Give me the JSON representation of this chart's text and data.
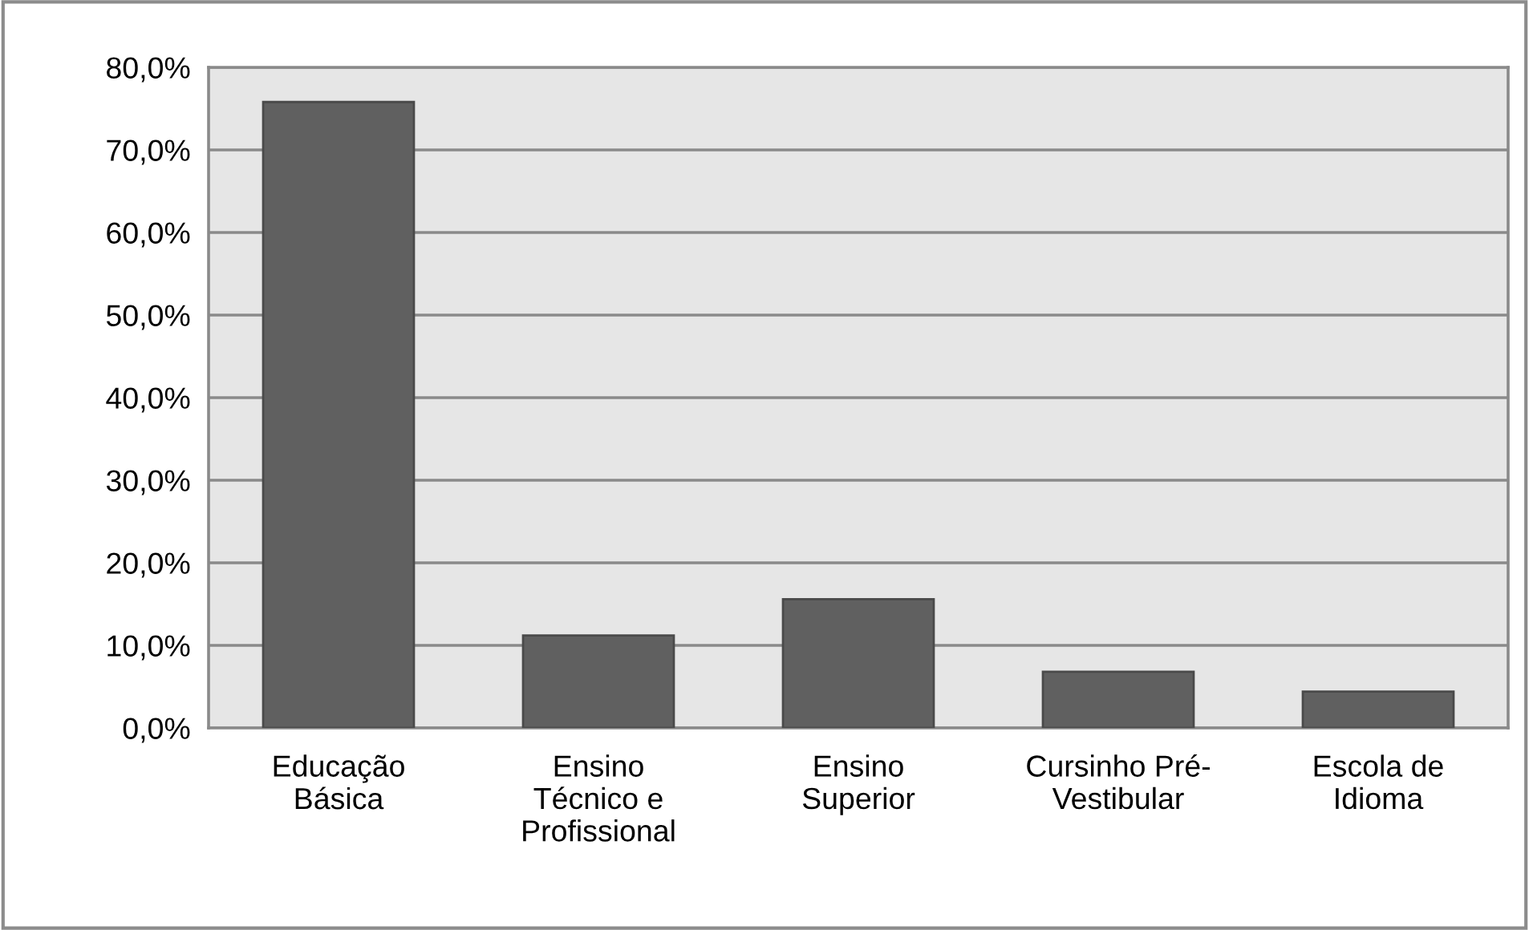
{
  "chart_data": {
    "type": "bar",
    "categories": [
      "Educação\nBásica",
      "Ensino\nTécnico e\nProfissional",
      "Ensino\nSuperior",
      "Cursinho Pré-\nVestibular",
      "Escola de\nIdioma"
    ],
    "values": [
      75.8,
      11.2,
      15.6,
      6.8,
      4.4
    ],
    "color": "#606060",
    "ylim": [
      0,
      80
    ],
    "yticks": [
      {
        "value": 0,
        "label": "0,0%"
      },
      {
        "value": 10,
        "label": "10,0%"
      },
      {
        "value": 20,
        "label": "20,0%"
      },
      {
        "value": 30,
        "label": "30,0%"
      },
      {
        "value": 40,
        "label": "40,0%"
      },
      {
        "value": 50,
        "label": "50,0%"
      },
      {
        "value": 60,
        "label": "60,0%"
      },
      {
        "value": 70,
        "label": "70,0%"
      },
      {
        "value": 80,
        "label": "80,0%"
      }
    ],
    "grid": "y"
  }
}
